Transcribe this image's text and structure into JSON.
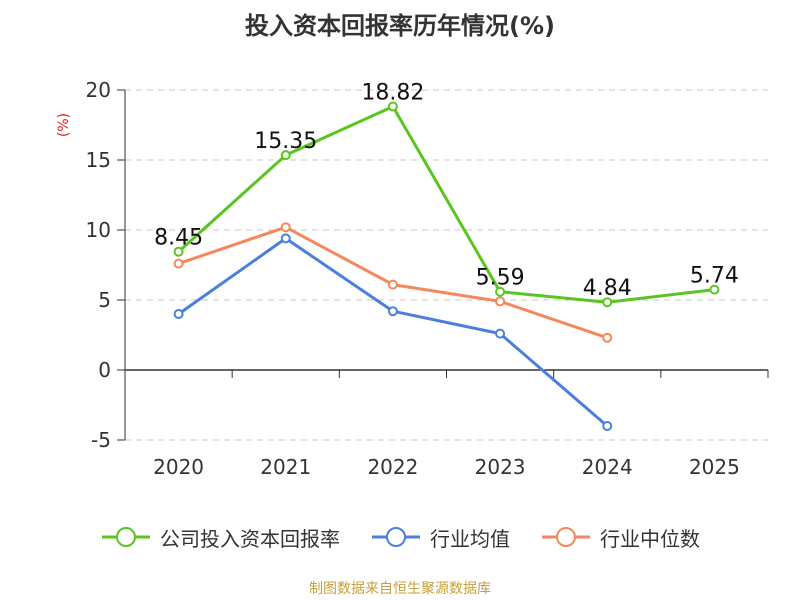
{
  "chart_data": {
    "type": "line",
    "title": "投入资本回报率历年情况(%)",
    "ylabel": "(%)",
    "xlabel": "",
    "categories": [
      "2020",
      "2021",
      "2022",
      "2023",
      "2024",
      "2025"
    ],
    "ylim": [
      -5,
      20
    ],
    "yticks": [
      -5,
      0,
      5,
      10,
      15,
      20
    ],
    "grid": true,
    "legend_position": "bottom",
    "series": [
      {
        "name": "公司投入资本回报率",
        "color": "#5ac51e",
        "values": [
          8.45,
          15.35,
          18.82,
          5.59,
          4.84,
          5.74
        ],
        "labels": [
          "8.45",
          "15.35",
          "18.82",
          "5.59",
          "4.84",
          "5.74"
        ]
      },
      {
        "name": "行业均值",
        "color": "#4a7fdc",
        "values": [
          4.0,
          9.4,
          4.2,
          2.6,
          -4.0,
          null
        ]
      },
      {
        "name": "行业中位数",
        "color": "#f5885a",
        "values": [
          7.6,
          10.2,
          6.1,
          4.9,
          2.3,
          null
        ]
      }
    ]
  },
  "source": "制图数据来自恒生聚源数据库"
}
